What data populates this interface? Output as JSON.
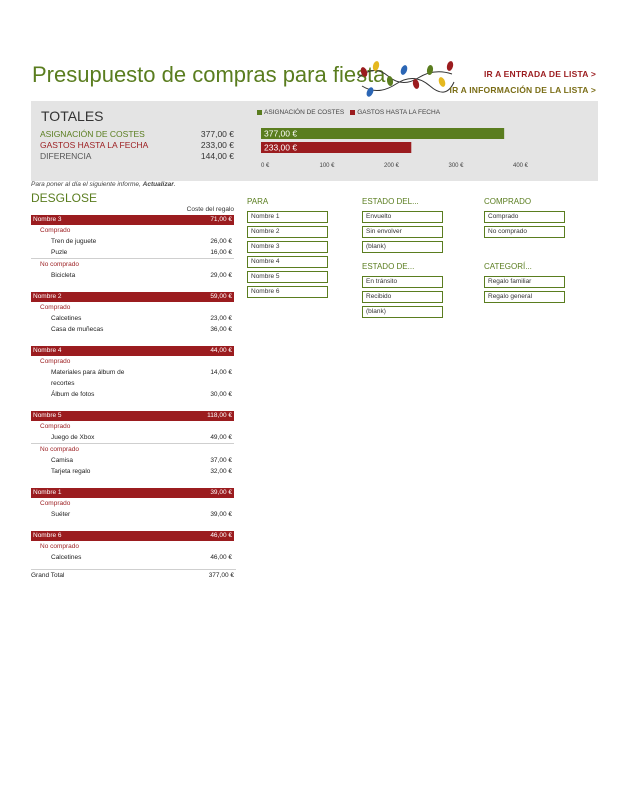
{
  "header": {
    "title": "Presupuesto de compras para fiesta",
    "nav_entry": "IR A ENTRADA DE LISTA >",
    "nav_info": "IR A INFORMACIÓN DE LA LISTA >"
  },
  "totals": {
    "title": "TOTALES",
    "rows": [
      {
        "label": "ASIGNACIÓN DE COSTES",
        "value": "377,00 €",
        "color": "#5a7d1f"
      },
      {
        "label": "GASTOS HASTA LA FECHA",
        "value": "233,00 €",
        "color": "#9b1c1f"
      },
      {
        "label": "DIFERENCIA",
        "value": "144,00 €",
        "color": "#555555"
      }
    ]
  },
  "chart_data": {
    "type": "bar",
    "orientation": "horizontal",
    "categories": [
      "ASIGNACIÓN DE COSTES",
      "GASTOS HASTA LA FECHA"
    ],
    "values": [
      377,
      233
    ],
    "data_labels": [
      "377,00 €",
      "233,00 €"
    ],
    "colors": [
      "#5a7d1f",
      "#9b1c1f"
    ],
    "xlim": [
      0,
      400
    ],
    "ticks": [
      0,
      100,
      200,
      300,
      400
    ],
    "tick_labels": [
      "0 €",
      "100 €",
      "200 €",
      "300 €",
      "400 €"
    ],
    "legend": [
      "ASIGNACIÓN DE COSTES",
      "GASTOS HASTA LA FECHA"
    ],
    "legend_position": "top",
    "grid": false
  },
  "refresh_note": {
    "prefix": "Para poner al día el siguiente informe,",
    "action": "Actualizar",
    "suffix": "."
  },
  "breakdown": {
    "title": "DESGLOSE",
    "column_header": "Coste del regalo",
    "groups": [
      {
        "name": "Nombre 3",
        "total": "71,00 €",
        "sections": [
          {
            "status": "Comprado",
            "items": [
              {
                "name": "Tren de juguete",
                "cost": "26,00 €"
              },
              {
                "name": "Puzle",
                "cost": "16,00 €"
              }
            ]
          },
          {
            "status": "No comprado",
            "items": [
              {
                "name": "Bicicleta",
                "cost": "29,00 €"
              }
            ]
          }
        ]
      },
      {
        "name": "Nombre 2",
        "total": "59,00 €",
        "sections": [
          {
            "status": "Comprado",
            "items": [
              {
                "name": "Calcetines",
                "cost": "23,00 €"
              },
              {
                "name": "Casa de muñecas",
                "cost": "36,00 €"
              }
            ]
          }
        ]
      },
      {
        "name": "Nombre 4",
        "total": "44,00 €",
        "sections": [
          {
            "status": "Comprado",
            "items": [
              {
                "name": "Materiales para álbum de recortes",
                "cost": "14,00 €"
              },
              {
                "name": "Álbum de fotos",
                "cost": "30,00 €"
              }
            ]
          }
        ]
      },
      {
        "name": "Nombre 5",
        "total": "118,00 €",
        "sections": [
          {
            "status": "Comprado",
            "items": [
              {
                "name": "Juego de Xbox",
                "cost": "49,00 €"
              }
            ]
          },
          {
            "status": "No comprado",
            "items": [
              {
                "name": "Camisa",
                "cost": "37,00 €"
              },
              {
                "name": "Tarjeta regalo",
                "cost": "32,00 €"
              }
            ]
          }
        ]
      },
      {
        "name": "Nombre 1",
        "total": "39,00 €",
        "sections": [
          {
            "status": "Comprado",
            "items": [
              {
                "name": "Suéter",
                "cost": "39,00 €"
              }
            ]
          }
        ]
      },
      {
        "name": "Nombre 6",
        "total": "46,00 €",
        "sections": [
          {
            "status": "No comprado",
            "items": [
              {
                "name": "Calcetines",
                "cost": "46,00 €"
              }
            ]
          }
        ]
      }
    ],
    "grand_total_label": "Grand Total",
    "grand_total_value": "377,00 €"
  },
  "slicers": {
    "para": {
      "title": "PARA",
      "options": [
        "Nombre 1",
        "Nombre 2",
        "Nombre 3",
        "Nombre 4",
        "Nombre 5",
        "Nombre 6"
      ]
    },
    "estado_del": {
      "title": "ESTADO DEL...",
      "options": [
        "Envuelto",
        "Sin envolver",
        "(blank)"
      ]
    },
    "estado_de": {
      "title": "ESTADO DE...",
      "options": [
        "En tránsito",
        "Recibido",
        "(blank)"
      ]
    },
    "comprado": {
      "title": "COMPRADO",
      "options": [
        "Comprado",
        "No comprado"
      ]
    },
    "categoria": {
      "title": "CATEGORÍ...",
      "options": [
        "Regalo familiar",
        "Regalo general"
      ]
    }
  }
}
